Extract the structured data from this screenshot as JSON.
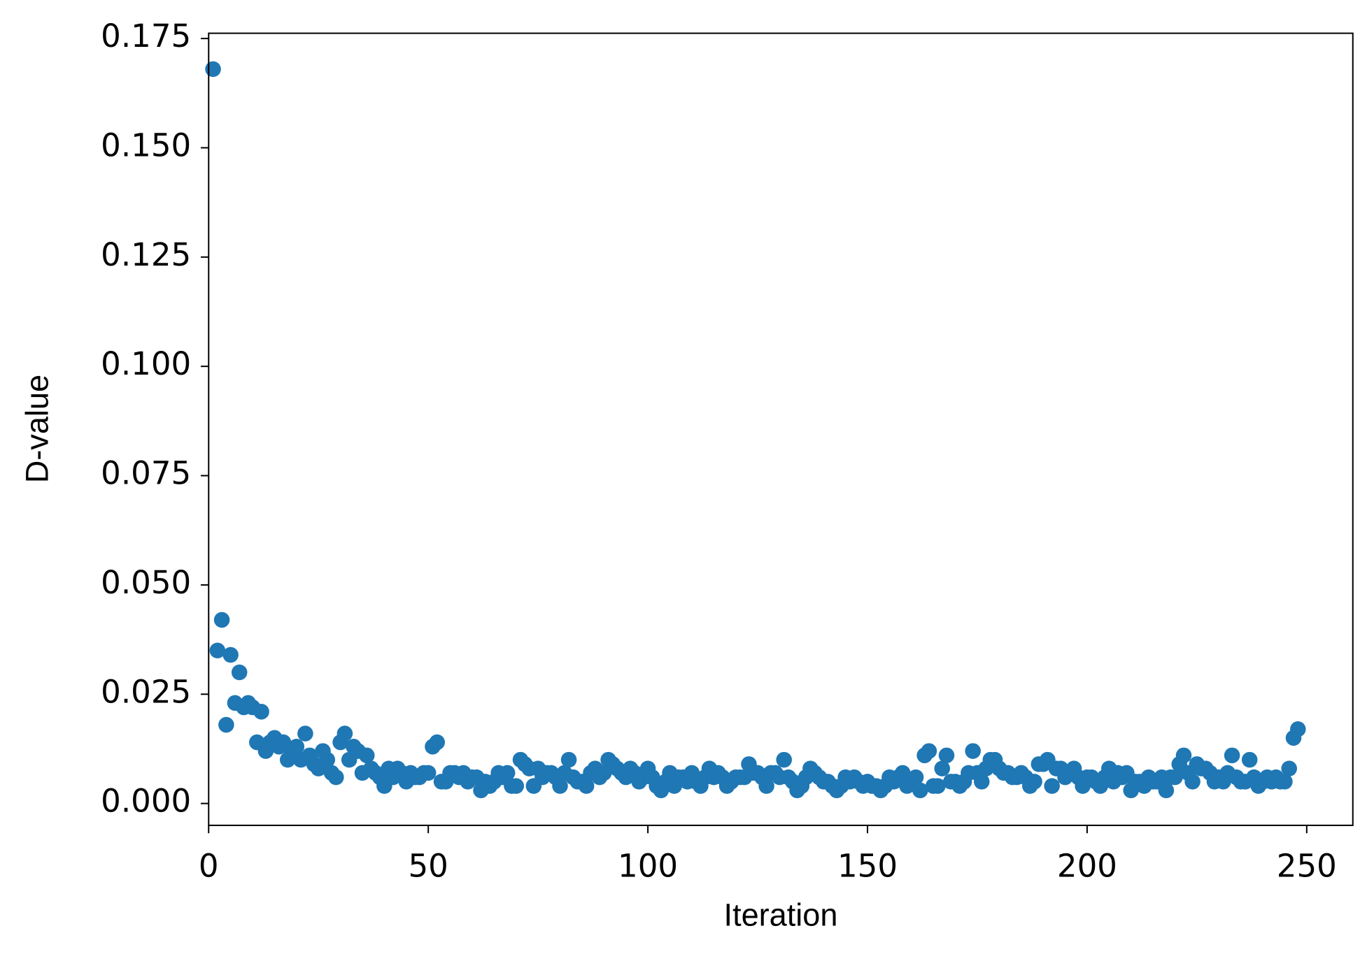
{
  "chart_data": {
    "type": "scatter",
    "xlabel": "Iteration",
    "ylabel": "D-value",
    "color": "#1f77b4",
    "xlim": [
      0,
      260.5
    ],
    "ylim": [
      -0.005,
      0.1762
    ],
    "xticks": [
      0,
      50,
      100,
      150,
      200,
      250
    ],
    "yticks": [
      {
        "value": 0,
        "label": "0.000"
      },
      {
        "value": 0.025,
        "label": "0.025"
      },
      {
        "value": 0.05,
        "label": "0.050"
      },
      {
        "value": 0.075,
        "label": "0.075"
      },
      {
        "value": 0.1,
        "label": "0.100"
      },
      {
        "value": 0.125,
        "label": "0.125"
      },
      {
        "value": 0.15,
        "label": "0.150"
      },
      {
        "value": 0.175,
        "label": "0.175"
      }
    ],
    "x": [
      1,
      2,
      3,
      4,
      5,
      6,
      7,
      8,
      9,
      10,
      11,
      12,
      13,
      14,
      15,
      16,
      17,
      18,
      19,
      20,
      21,
      22,
      23,
      24,
      25,
      26,
      27,
      28,
      29,
      30,
      31,
      32,
      33,
      34,
      35,
      36,
      37,
      38,
      39,
      40,
      41,
      42,
      43,
      44,
      45,
      46,
      47,
      48,
      49,
      50,
      51,
      52,
      53,
      54,
      55,
      56,
      57,
      58,
      59,
      60,
      61,
      62,
      63,
      64,
      65,
      66,
      67,
      68,
      69,
      70,
      71,
      72,
      73,
      74,
      75,
      76,
      77,
      78,
      79,
      80,
      81,
      82,
      83,
      84,
      85,
      86,
      87,
      88,
      89,
      90,
      91,
      92,
      93,
      94,
      95,
      96,
      97,
      98,
      99,
      100,
      101,
      102,
      103,
      104,
      105,
      106,
      107,
      108,
      109,
      110,
      111,
      112,
      113,
      114,
      115,
      116,
      117,
      118,
      119,
      120,
      121,
      122,
      123,
      124,
      125,
      126,
      127,
      128,
      129,
      130,
      131,
      132,
      133,
      134,
      135,
      136,
      137,
      138,
      139,
      140,
      141,
      142,
      143,
      144,
      145,
      146,
      147,
      148,
      149,
      150,
      151,
      152,
      153,
      154,
      155,
      156,
      157,
      158,
      159,
      160,
      161,
      162,
      163,
      164,
      165,
      166,
      167,
      168,
      169,
      170,
      171,
      172,
      173,
      174,
      175,
      176,
      177,
      178,
      179,
      180,
      181,
      182,
      183,
      184,
      185,
      186,
      187,
      188,
      189,
      190,
      191,
      192,
      193,
      194,
      195,
      196,
      197,
      198,
      199,
      200,
      201,
      202,
      203,
      204,
      205,
      206,
      207,
      208,
      209,
      210,
      211,
      212,
      213,
      214,
      215,
      216,
      217,
      218,
      219,
      220,
      221,
      222,
      223,
      224,
      225,
      226,
      227,
      228,
      229,
      230,
      231,
      232,
      233,
      234,
      235,
      236,
      237,
      238,
      239,
      240,
      241,
      242,
      243,
      244,
      245,
      246,
      247,
      248
    ],
    "values": [
      0.168,
      0.035,
      0.042,
      0.018,
      0.034,
      0.023,
      0.03,
      0.022,
      0.023,
      0.022,
      0.014,
      0.021,
      0.012,
      0.014,
      0.015,
      0.013,
      0.014,
      0.01,
      0.012,
      0.013,
      0.01,
      0.016,
      0.011,
      0.009,
      0.008,
      0.012,
      0.01,
      0.007,
      0.006,
      0.014,
      0.016,
      0.01,
      0.013,
      0.012,
      0.007,
      0.011,
      0.008,
      0.007,
      0.006,
      0.004,
      0.008,
      0.006,
      0.008,
      0.007,
      0.005,
      0.007,
      0.006,
      0.006,
      0.007,
      0.007,
      0.013,
      0.014,
      0.005,
      0.005,
      0.007,
      0.007,
      0.006,
      0.007,
      0.005,
      0.006,
      0.006,
      0.003,
      0.005,
      0.004,
      0.005,
      0.007,
      0.006,
      0.007,
      0.004,
      0.004,
      0.01,
      0.009,
      0.008,
      0.004,
      0.008,
      0.006,
      0.007,
      0.007,
      0.006,
      0.004,
      0.007,
      0.01,
      0.006,
      0.005,
      0.005,
      0.004,
      0.007,
      0.008,
      0.006,
      0.007,
      0.01,
      0.009,
      0.008,
      0.007,
      0.006,
      0.008,
      0.007,
      0.005,
      0.006,
      0.008,
      0.006,
      0.004,
      0.003,
      0.005,
      0.007,
      0.004,
      0.006,
      0.006,
      0.005,
      0.007,
      0.005,
      0.004,
      0.006,
      0.008,
      0.006,
      0.007,
      0.006,
      0.004,
      0.005,
      0.006,
      0.006,
      0.006,
      0.009,
      0.007,
      0.007,
      0.006,
      0.004,
      0.007,
      0.007,
      0.006,
      0.01,
      0.006,
      0.005,
      0.003,
      0.004,
      0.006,
      0.008,
      0.007,
      0.006,
      0.005,
      0.005,
      0.004,
      0.003,
      0.004,
      0.006,
      0.005,
      0.006,
      0.005,
      0.004,
      0.005,
      0.004,
      0.004,
      0.003,
      0.004,
      0.006,
      0.005,
      0.006,
      0.007,
      0.004,
      0.005,
      0.006,
      0.003,
      0.011,
      0.012,
      0.004,
      0.004,
      0.008,
      0.011,
      0.005,
      0.005,
      0.004,
      0.005,
      0.007,
      0.012,
      0.007,
      0.005,
      0.008,
      0.01,
      0.01,
      0.008,
      0.007,
      0.007,
      0.006,
      0.006,
      0.007,
      0.006,
      0.004,
      0.005,
      0.009,
      0.009,
      0.01,
      0.004,
      0.008,
      0.008,
      0.006,
      0.007,
      0.008,
      0.006,
      0.004,
      0.006,
      0.006,
      0.005,
      0.004,
      0.006,
      0.008,
      0.005,
      0.007,
      0.006,
      0.007,
      0.003,
      0.005,
      0.005,
      0.004,
      0.006,
      0.005,
      0.005,
      0.006,
      0.003,
      0.006,
      0.006,
      0.009,
      0.011,
      0.007,
      0.005,
      0.009,
      0.008,
      0.008,
      0.007,
      0.005,
      0.006,
      0.005,
      0.007,
      0.011,
      0.006,
      0.005,
      0.005,
      0.01,
      0.006,
      0.004,
      0.005,
      0.006,
      0.005,
      0.006,
      0.005,
      0.005,
      0.008,
      0.015,
      0.017
    ]
  }
}
